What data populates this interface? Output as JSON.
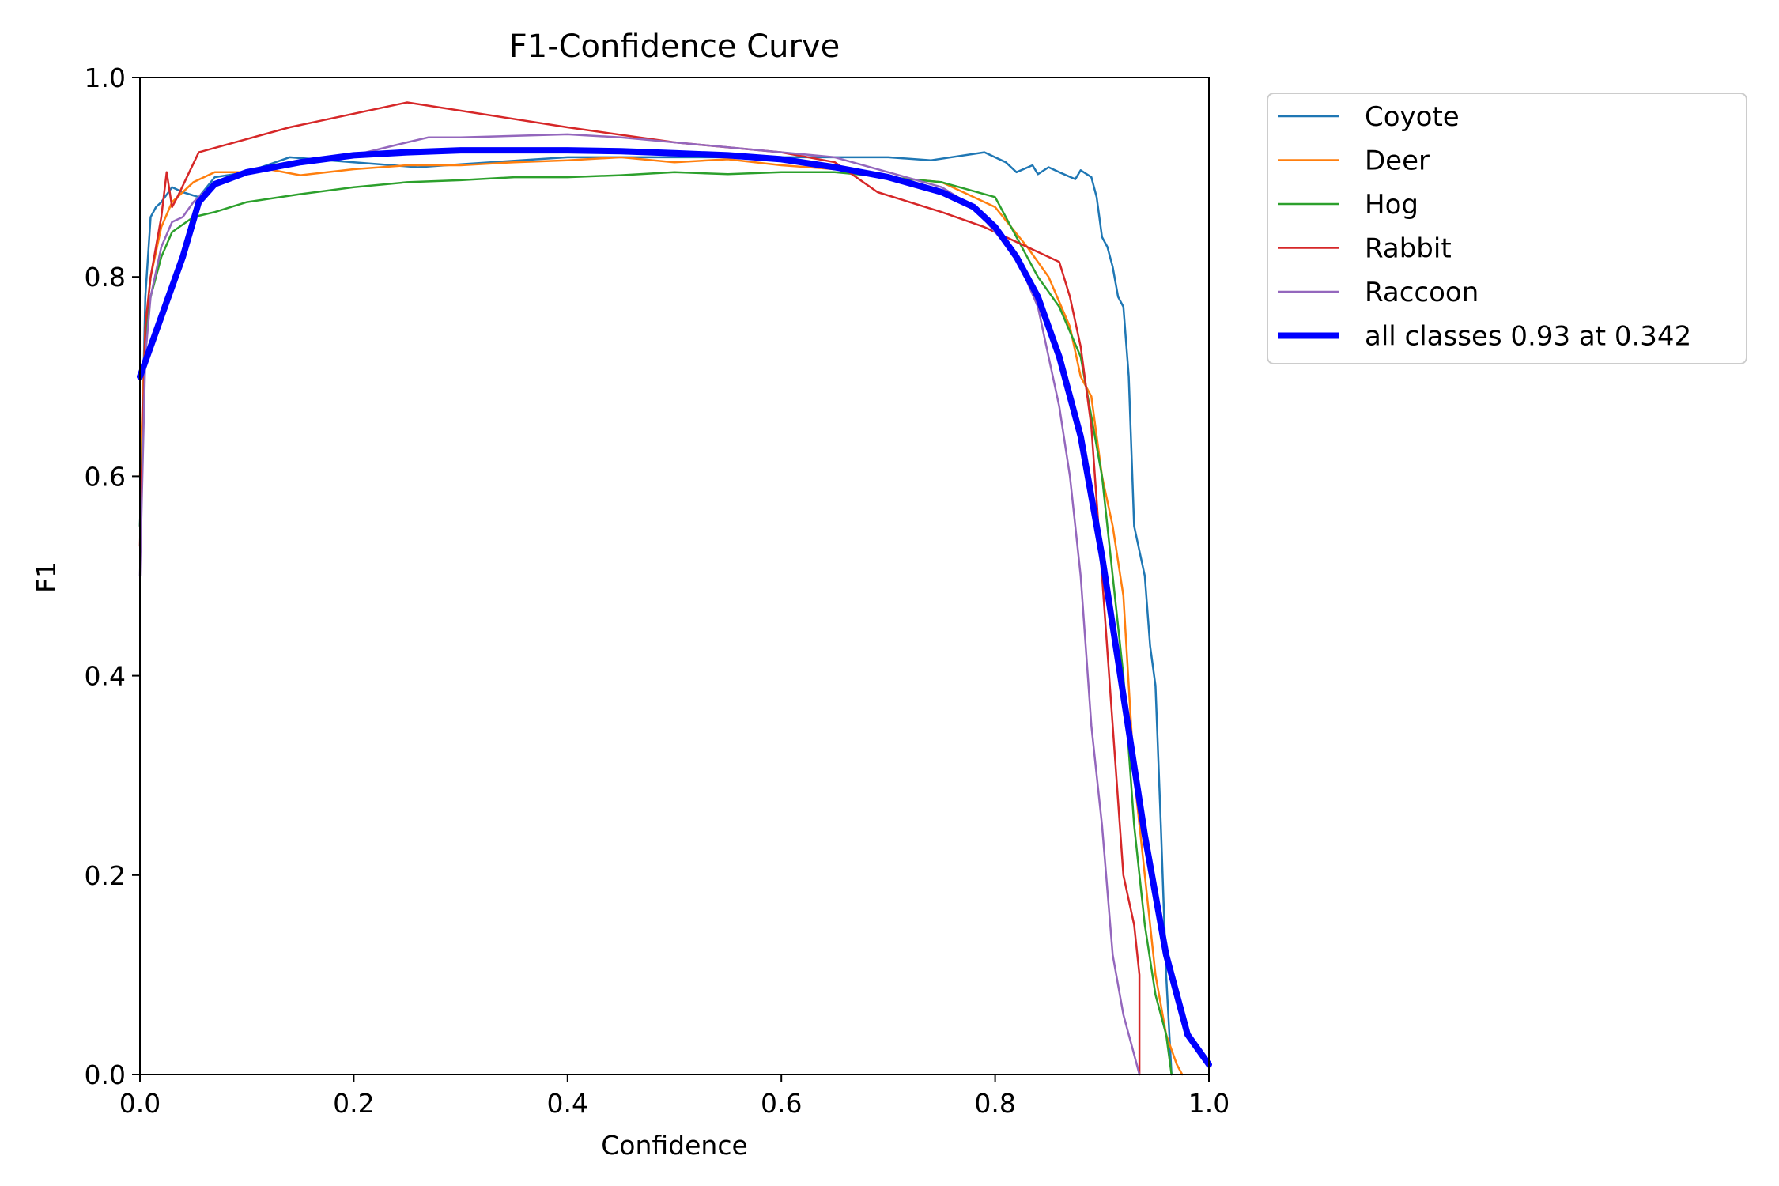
{
  "chart_data": {
    "type": "line",
    "title": "F1-Confidence Curve",
    "xlabel": "Confidence",
    "ylabel": "F1",
    "xlim": [
      0,
      1
    ],
    "ylim": [
      0,
      1
    ],
    "x_ticks": [
      "0.0",
      "0.2",
      "0.4",
      "0.6",
      "0.8",
      "1.0"
    ],
    "y_ticks": [
      "0.0",
      "0.2",
      "0.4",
      "0.6",
      "0.8",
      "1.0"
    ],
    "grid": false,
    "legend_position": "outside-top-right",
    "series": [
      {
        "name": "Coyote",
        "color": "#1f77b4",
        "points": [
          [
            0,
            0.55
          ],
          [
            0.005,
            0.78
          ],
          [
            0.01,
            0.86
          ],
          [
            0.015,
            0.87
          ],
          [
            0.02,
            0.875
          ],
          [
            0.03,
            0.89
          ],
          [
            0.04,
            0.885
          ],
          [
            0.055,
            0.88
          ],
          [
            0.07,
            0.9
          ],
          [
            0.1,
            0.905
          ],
          [
            0.14,
            0.92
          ],
          [
            0.2,
            0.915
          ],
          [
            0.26,
            0.91
          ],
          [
            0.3,
            0.913
          ],
          [
            0.4,
            0.92
          ],
          [
            0.5,
            0.92
          ],
          [
            0.6,
            0.92
          ],
          [
            0.7,
            0.92
          ],
          [
            0.74,
            0.917
          ],
          [
            0.79,
            0.925
          ],
          [
            0.81,
            0.915
          ],
          [
            0.82,
            0.905
          ],
          [
            0.835,
            0.912
          ],
          [
            0.84,
            0.903
          ],
          [
            0.85,
            0.91
          ],
          [
            0.86,
            0.905
          ],
          [
            0.875,
            0.898
          ],
          [
            0.88,
            0.907
          ],
          [
            0.89,
            0.9
          ],
          [
            0.895,
            0.88
          ],
          [
            0.9,
            0.84
          ],
          [
            0.905,
            0.83
          ],
          [
            0.91,
            0.81
          ],
          [
            0.915,
            0.78
          ],
          [
            0.92,
            0.77
          ],
          [
            0.925,
            0.7
          ],
          [
            0.93,
            0.55
          ],
          [
            0.94,
            0.5
          ],
          [
            0.945,
            0.43
          ],
          [
            0.95,
            0.39
          ],
          [
            0.955,
            0.25
          ],
          [
            0.96,
            0.1
          ],
          [
            0.965,
            0
          ]
        ]
      },
      {
        "name": "Deer",
        "color": "#ff7f0e",
        "points": [
          [
            0,
            0.6
          ],
          [
            0.005,
            0.75
          ],
          [
            0.01,
            0.8
          ],
          [
            0.02,
            0.85
          ],
          [
            0.03,
            0.875
          ],
          [
            0.05,
            0.895
          ],
          [
            0.07,
            0.905
          ],
          [
            0.1,
            0.905
          ],
          [
            0.12,
            0.908
          ],
          [
            0.15,
            0.902
          ],
          [
            0.2,
            0.908
          ],
          [
            0.25,
            0.912
          ],
          [
            0.3,
            0.912
          ],
          [
            0.35,
            0.915
          ],
          [
            0.4,
            0.917
          ],
          [
            0.45,
            0.92
          ],
          [
            0.5,
            0.915
          ],
          [
            0.55,
            0.918
          ],
          [
            0.6,
            0.912
          ],
          [
            0.65,
            0.908
          ],
          [
            0.7,
            0.9
          ],
          [
            0.75,
            0.895
          ],
          [
            0.8,
            0.87
          ],
          [
            0.83,
            0.83
          ],
          [
            0.85,
            0.8
          ],
          [
            0.87,
            0.75
          ],
          [
            0.88,
            0.7
          ],
          [
            0.89,
            0.68
          ],
          [
            0.9,
            0.6
          ],
          [
            0.91,
            0.55
          ],
          [
            0.92,
            0.48
          ],
          [
            0.93,
            0.3
          ],
          [
            0.94,
            0.2
          ],
          [
            0.95,
            0.1
          ],
          [
            0.96,
            0.04
          ],
          [
            0.97,
            0.01
          ],
          [
            0.975,
            0
          ]
        ]
      },
      {
        "name": "Hog",
        "color": "#2ca02c",
        "points": [
          [
            0,
            0.55
          ],
          [
            0.005,
            0.74
          ],
          [
            0.01,
            0.78
          ],
          [
            0.02,
            0.82
          ],
          [
            0.03,
            0.845
          ],
          [
            0.05,
            0.86
          ],
          [
            0.07,
            0.865
          ],
          [
            0.1,
            0.875
          ],
          [
            0.15,
            0.883
          ],
          [
            0.2,
            0.89
          ],
          [
            0.25,
            0.895
          ],
          [
            0.3,
            0.897
          ],
          [
            0.35,
            0.9
          ],
          [
            0.4,
            0.9
          ],
          [
            0.45,
            0.902
          ],
          [
            0.5,
            0.905
          ],
          [
            0.55,
            0.903
          ],
          [
            0.6,
            0.905
          ],
          [
            0.65,
            0.905
          ],
          [
            0.7,
            0.9
          ],
          [
            0.75,
            0.895
          ],
          [
            0.8,
            0.88
          ],
          [
            0.82,
            0.84
          ],
          [
            0.84,
            0.8
          ],
          [
            0.86,
            0.77
          ],
          [
            0.88,
            0.72
          ],
          [
            0.9,
            0.6
          ],
          [
            0.92,
            0.4
          ],
          [
            0.93,
            0.25
          ],
          [
            0.94,
            0.15
          ],
          [
            0.95,
            0.08
          ],
          [
            0.96,
            0.04
          ],
          [
            0.965,
            0
          ]
        ]
      },
      {
        "name": "Rabbit",
        "color": "#d62728",
        "points": [
          [
            0,
            0.53
          ],
          [
            0.005,
            0.75
          ],
          [
            0.01,
            0.8
          ],
          [
            0.02,
            0.86
          ],
          [
            0.025,
            0.905
          ],
          [
            0.03,
            0.87
          ],
          [
            0.035,
            0.88
          ],
          [
            0.055,
            0.925
          ],
          [
            0.14,
            0.95
          ],
          [
            0.25,
            0.975
          ],
          [
            0.4,
            0.95
          ],
          [
            0.5,
            0.935
          ],
          [
            0.6,
            0.925
          ],
          [
            0.65,
            0.915
          ],
          [
            0.69,
            0.885
          ],
          [
            0.75,
            0.865
          ],
          [
            0.79,
            0.85
          ],
          [
            0.86,
            0.815
          ],
          [
            0.87,
            0.78
          ],
          [
            0.88,
            0.73
          ],
          [
            0.89,
            0.65
          ],
          [
            0.9,
            0.5
          ],
          [
            0.91,
            0.35
          ],
          [
            0.92,
            0.2
          ],
          [
            0.93,
            0.15
          ],
          [
            0.935,
            0.1
          ],
          [
            0.935,
            0
          ]
        ]
      },
      {
        "name": "Raccoon",
        "color": "#9467bd",
        "points": [
          [
            0,
            0.5
          ],
          [
            0.005,
            0.72
          ],
          [
            0.01,
            0.78
          ],
          [
            0.02,
            0.83
          ],
          [
            0.03,
            0.855
          ],
          [
            0.04,
            0.86
          ],
          [
            0.05,
            0.875
          ],
          [
            0.07,
            0.895
          ],
          [
            0.1,
            0.905
          ],
          [
            0.15,
            0.915
          ],
          [
            0.2,
            0.922
          ],
          [
            0.25,
            0.935
          ],
          [
            0.27,
            0.94
          ],
          [
            0.3,
            0.94
          ],
          [
            0.4,
            0.943
          ],
          [
            0.45,
            0.94
          ],
          [
            0.5,
            0.935
          ],
          [
            0.55,
            0.93
          ],
          [
            0.6,
            0.925
          ],
          [
            0.65,
            0.92
          ],
          [
            0.7,
            0.905
          ],
          [
            0.75,
            0.89
          ],
          [
            0.78,
            0.87
          ],
          [
            0.8,
            0.845
          ],
          [
            0.82,
            0.82
          ],
          [
            0.84,
            0.77
          ],
          [
            0.85,
            0.72
          ],
          [
            0.86,
            0.67
          ],
          [
            0.87,
            0.6
          ],
          [
            0.88,
            0.5
          ],
          [
            0.89,
            0.35
          ],
          [
            0.9,
            0.25
          ],
          [
            0.91,
            0.12
          ],
          [
            0.92,
            0.06
          ],
          [
            0.93,
            0.02
          ],
          [
            0.935,
            0
          ]
        ]
      },
      {
        "name": "all classes 0.93 at 0.342",
        "color": "#0000ff",
        "thick": true,
        "points": [
          [
            0,
            0.7
          ],
          [
            0.02,
            0.76
          ],
          [
            0.04,
            0.82
          ],
          [
            0.055,
            0.875
          ],
          [
            0.07,
            0.893
          ],
          [
            0.1,
            0.905
          ],
          [
            0.15,
            0.915
          ],
          [
            0.2,
            0.922
          ],
          [
            0.25,
            0.925
          ],
          [
            0.3,
            0.927
          ],
          [
            0.342,
            0.927
          ],
          [
            0.4,
            0.927
          ],
          [
            0.45,
            0.926
          ],
          [
            0.5,
            0.924
          ],
          [
            0.55,
            0.922
          ],
          [
            0.6,
            0.918
          ],
          [
            0.65,
            0.91
          ],
          [
            0.7,
            0.9
          ],
          [
            0.75,
            0.885
          ],
          [
            0.78,
            0.87
          ],
          [
            0.8,
            0.85
          ],
          [
            0.82,
            0.82
          ],
          [
            0.84,
            0.78
          ],
          [
            0.86,
            0.72
          ],
          [
            0.88,
            0.64
          ],
          [
            0.9,
            0.52
          ],
          [
            0.92,
            0.38
          ],
          [
            0.94,
            0.24
          ],
          [
            0.96,
            0.12
          ],
          [
            0.98,
            0.04
          ],
          [
            1.0,
            0.01
          ]
        ]
      }
    ]
  }
}
